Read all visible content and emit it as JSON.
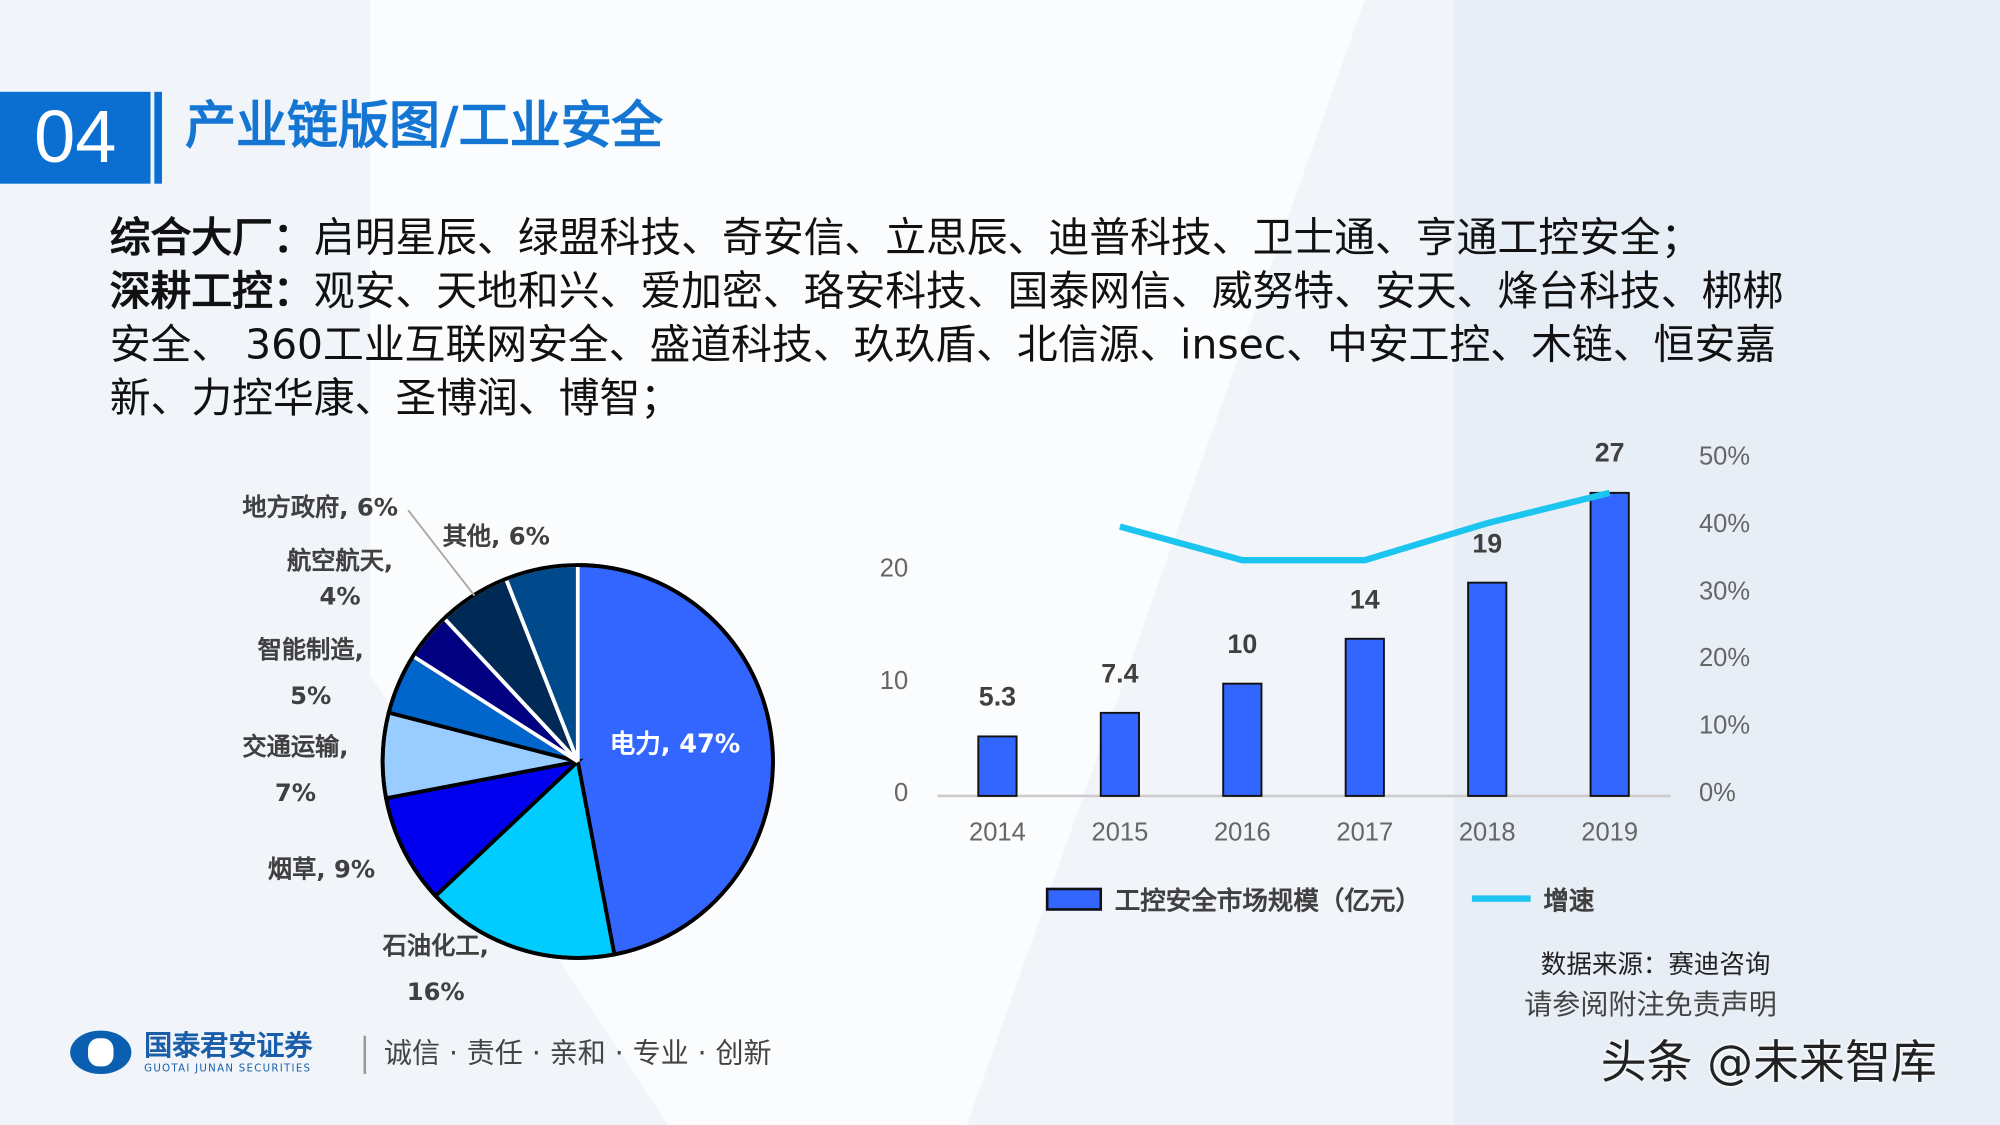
{
  "header": {
    "section_number": "04",
    "title": "产业链版图/工业安全"
  },
  "body": {
    "p1_label": "综合大厂：",
    "p1_text": "启明星辰、绿盟科技、奇安信、立思辰、迪普科技、卫士通、亨通工控安全；",
    "p2_label": "深耕工控：",
    "p2_text": "观安、天地和兴、爱加密、珞安科技、国泰网信、威努特、安天、烽台科技、梆梆安全、 360工业互联网安全、盛道科技、玖玖盾、北信源、insec、中安工控、木链、恒安嘉新、力控华康、圣博润、博智；"
  },
  "chart_data": [
    {
      "type": "pie",
      "slices": [
        {
          "label": "电力",
          "value": 47,
          "text": "电力, 47%",
          "color": "#3366ff"
        },
        {
          "label": "石油化工",
          "value": 16,
          "text": "石油化工,",
          "text2": "16%",
          "color": "#00ccff"
        },
        {
          "label": "烟草",
          "value": 9,
          "text": "烟草, 9%",
          "color": "#0000ee"
        },
        {
          "label": "交通运输",
          "value": 7,
          "text": "交通运输,",
          "text2": "7%",
          "color": "#99ccff"
        },
        {
          "label": "智能制造",
          "value": 5,
          "text": "智能制造,",
          "text2": "5%",
          "color": "#0066cc"
        },
        {
          "label": "航空航天",
          "value": 4,
          "text": "航空航天,",
          "text2": "4%",
          "color": "#000080"
        },
        {
          "label": "地方政府",
          "value": 6,
          "text": "地方政府, 6%",
          "color": "#002a55"
        },
        {
          "label": "其他",
          "value": 6,
          "text": "其他, 6%",
          "color": "#004a8c"
        }
      ]
    },
    {
      "type": "bar+line",
      "categories": [
        "2014",
        "2015",
        "2016",
        "2017",
        "2018",
        "2019"
      ],
      "series": [
        {
          "name": "工控安全市场规模（亿元）",
          "type": "bar",
          "axis": "left",
          "values": [
            5.3,
            7.4,
            10,
            14,
            19,
            27
          ],
          "labels": [
            "5.3",
            "7.4",
            "10",
            "14",
            "19",
            "27"
          ],
          "color": "#3366ff"
        },
        {
          "name": "增速",
          "type": "line",
          "axis": "right",
          "values": [
            null,
            0.4,
            0.35,
            0.35,
            0.405,
            0.45
          ],
          "color": "#1cc4f0"
        }
      ],
      "left_axis": {
        "ylim": [
          0,
          30
        ],
        "ticks": [
          "0",
          "10",
          "20"
        ]
      },
      "right_axis": {
        "ylim": [
          0,
          0.5
        ],
        "ticks": [
          "0%",
          "10%",
          "20%",
          "30%",
          "40%",
          "50%"
        ]
      },
      "grid": false,
      "legend": "bottom"
    }
  ],
  "source": "数据来源：赛迪咨询",
  "footer": {
    "logo_cn": "国泰君安证券",
    "logo_en": "GUOTAI JUNAN SECURITIES",
    "motto": "诚信 · 责任 · 亲和 · 专业 · 创新",
    "disclaimer": "请参阅附注免责声明",
    "watermark": "头条 @未来智库"
  }
}
